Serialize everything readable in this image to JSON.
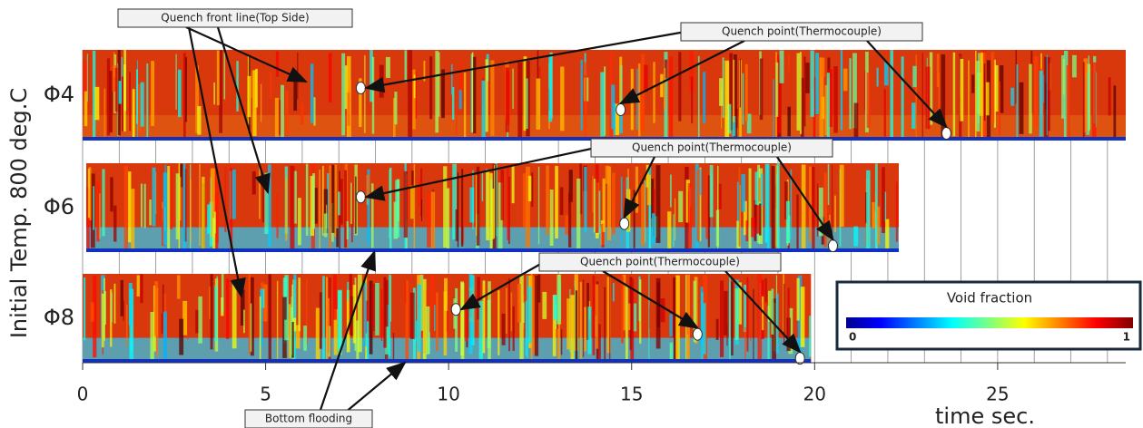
{
  "chart_data": {
    "type": "heatmap-strips",
    "ylabel": "Initial Temp. 800 deg.C",
    "xlabel": "time sec.",
    "xlim": [
      0,
      28.5
    ],
    "xticks": [
      0,
      5,
      10,
      15,
      20,
      25
    ],
    "minor_grid_step": 1,
    "series": [
      {
        "name": "Φ4",
        "end": 28.5,
        "quench_points": [
          7.6,
          14.7,
          23.6
        ]
      },
      {
        "name": "Φ6",
        "end": 22.3,
        "quench_points": [
          7.6,
          14.8,
          20.5
        ]
      },
      {
        "name": "Φ8",
        "end": 19.9,
        "quench_points": [
          10.2,
          16.8,
          19.6
        ]
      }
    ],
    "annotations": {
      "front": "Quench front line(Top Side)",
      "quench": [
        "Quench point(Thermocouple)",
        "Quench point(Thermocouple)",
        "Quench point(Thermocouple)"
      ],
      "flooding": "Bottom flooding"
    },
    "colorbar": {
      "title": "Void fraction",
      "lim": [
        0,
        1
      ],
      "ticks": [
        0,
        1
      ]
    }
  }
}
